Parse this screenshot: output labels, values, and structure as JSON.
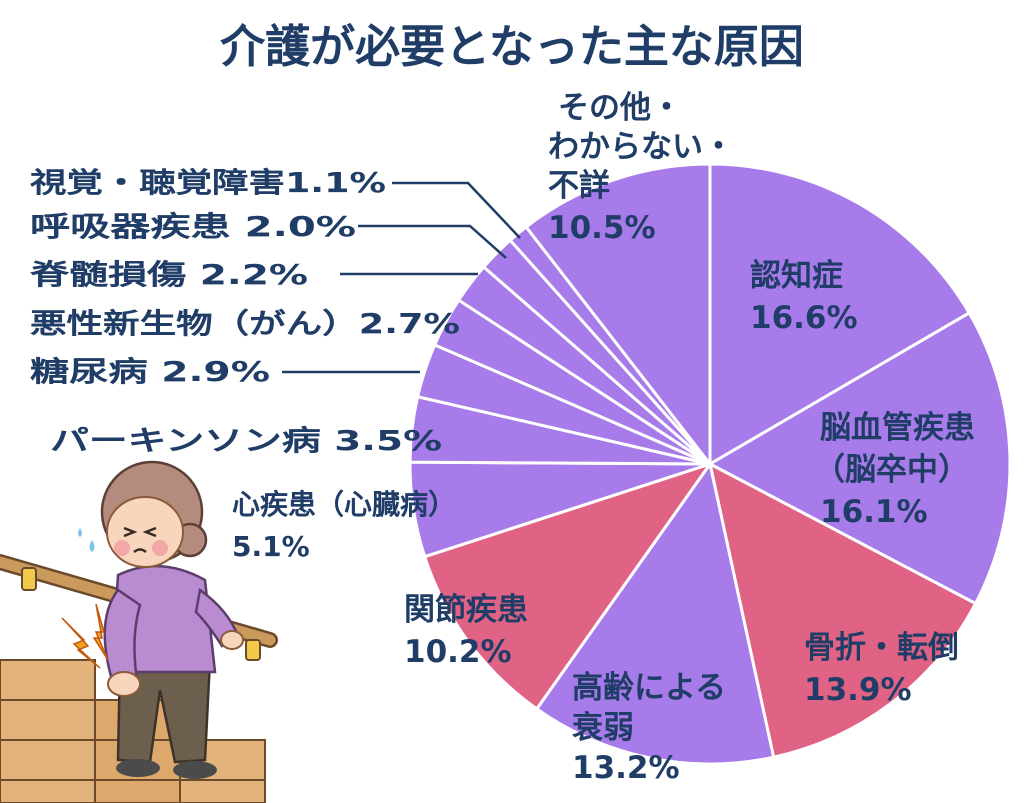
{
  "colors": {
    "purple": "#a77bea",
    "pink": "#e06385",
    "navy": "#1f3d66",
    "divider": "#ffffff"
  },
  "chart_data": {
    "type": "pie",
    "title": "介護が必要となった主な原因",
    "slices": [
      {
        "label": "認知症",
        "value": 16.6,
        "value_label": "16.6%",
        "color": "purple"
      },
      {
        "label": "脳血管疾患（脳卒中）",
        "value": 16.1,
        "value_label": "16.1%",
        "color": "purple"
      },
      {
        "label": "骨折・転倒",
        "value": 13.9,
        "value_label": "13.9%",
        "color": "pink"
      },
      {
        "label": "高齢による衰弱",
        "value": 13.2,
        "value_label": "13.2%",
        "color": "purple"
      },
      {
        "label": "関節疾患",
        "value": 10.2,
        "value_label": "10.2%",
        "color": "pink"
      },
      {
        "label": "心疾患（心臓病）",
        "value": 5.1,
        "value_label": "5.1%",
        "color": "purple"
      },
      {
        "label": "パーキンソン病",
        "value": 3.5,
        "value_label": "3.5%",
        "color": "purple"
      },
      {
        "label": "糖尿病",
        "value": 2.9,
        "value_label": "2.9%",
        "color": "purple"
      },
      {
        "label": "悪性新生物（がん）",
        "value": 2.7,
        "value_label": "2.7%",
        "color": "purple"
      },
      {
        "label": "脊髄損傷",
        "value": 2.2,
        "value_label": "2.2%",
        "color": "purple"
      },
      {
        "label": "呼吸器疾患",
        "value": 2.0,
        "value_label": "2.0%",
        "color": "purple"
      },
      {
        "label": "視覚・聴覚障害",
        "value": 1.1,
        "value_label": "1.1%",
        "color": "purple"
      },
      {
        "label": "その他・わからない・不詳",
        "value": 10.5,
        "value_label": "10.5%",
        "color": "purple"
      }
    ],
    "labels": {
      "dementia": {
        "lines": [
          "認知症",
          "16.6%"
        ]
      },
      "stroke": {
        "lines": [
          "脳血管疾患",
          "（脳卒中）",
          "16.1%"
        ]
      },
      "fracture": {
        "lines": [
          "骨折・転倒",
          "13.9%"
        ]
      },
      "frailty": {
        "lines": [
          "高齢による",
          "衰弱",
          "13.2%"
        ]
      },
      "joint": {
        "lines": [
          "関節疾患",
          "10.2%"
        ]
      },
      "heart": {
        "lines": [
          "心疾患（心臓病）",
          "5.1%"
        ]
      },
      "parkinson": {
        "text": "パーキンソン病 3.5%"
      },
      "diabetes": {
        "text": "糖尿病 2.9%"
      },
      "cancer": {
        "text": "悪性新生物（がん）2.7%"
      },
      "spinal": {
        "text": "脊髄損傷 2.2%"
      },
      "respiratory": {
        "text": "呼吸器疾患 2.0%"
      },
      "vision_hearing": {
        "text": "視覚・聴覚障害1.1%"
      },
      "other": {
        "lines": [
          "その他・",
          "わからない・",
          "不詳",
          "10.5%"
        ]
      }
    }
  },
  "illustration": {
    "subject": "elderly woman holding handrail on stairs with knee pain"
  }
}
